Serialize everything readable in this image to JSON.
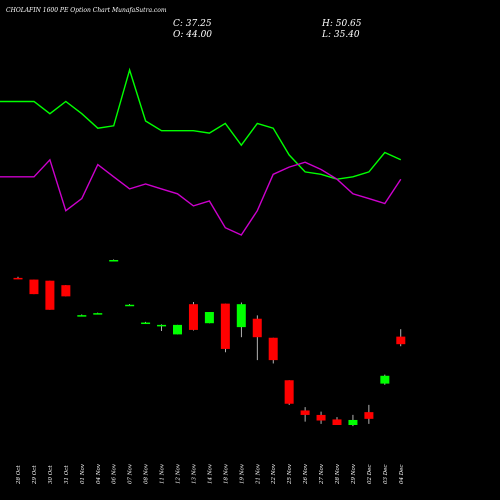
{
  "header": {
    "title": "CHOLAFIN 1600 PE Option Chart MunafaSutra.com",
    "c": "C: 37.25",
    "h": "H: 50.65",
    "o": "O: 44.00",
    "l": "L: 35.40"
  },
  "colors": {
    "background": "#000000",
    "up": "#00ff00",
    "down": "#ff0000",
    "line_upper": "#00ff00",
    "line_lower": "#cc00cc",
    "text": "#ffffff"
  },
  "chart_data": {
    "type": "candlestick",
    "grid": false,
    "title": "CHOLAFIN 1600 PE Option Chart MunafaSutra.com",
    "x": [
      "28 Oct",
      "29 Oct",
      "30 Oct",
      "31 Oct",
      "01 Nov",
      "04 Nov",
      "06 Nov",
      "07 Nov",
      "08 Nov",
      "11 Nov",
      "12 Nov",
      "13 Nov",
      "14 Nov",
      "18 Nov",
      "19 Nov",
      "21 Nov",
      "22 Nov",
      "25 Nov",
      "26 Nov",
      "27 Nov",
      "28 Nov",
      "29 Nov",
      "02 Dec",
      "03 Dec",
      "04 Dec"
    ],
    "candles": [
      {
        "o": 96.5,
        "h": 97.5,
        "l": 95.5,
        "c": 96.0
      },
      {
        "o": 95.0,
        "h": 95.0,
        "l": 82.0,
        "c": 82.0
      },
      {
        "o": 94.0,
        "h": 94.0,
        "l": 68.0,
        "c": 68.0
      },
      {
        "o": 90.0,
        "h": 90.0,
        "l": 80.0,
        "c": 80.0
      },
      {
        "o": 63.2,
        "h": 63.8,
        "l": 62.8,
        "c": 63.2
      },
      {
        "o": 64.8,
        "h": 65.4,
        "l": 64.4,
        "c": 65.0
      },
      {
        "o": 112.4,
        "h": 113.0,
        "l": 112.0,
        "c": 112.5
      },
      {
        "o": 72.4,
        "h": 73.0,
        "l": 72.0,
        "c": 72.5
      },
      {
        "o": 56.6,
        "h": 57.2,
        "l": 56.2,
        "c": 56.6
      },
      {
        "o": 53.5,
        "h": 55.0,
        "l": 49.0,
        "c": 54.5
      },
      {
        "o": 46.0,
        "h": 54.5,
        "l": 46.0,
        "c": 54.5
      },
      {
        "o": 73.0,
        "h": 75.0,
        "l": 49.5,
        "c": 50.0
      },
      {
        "o": 56.0,
        "h": 66.0,
        "l": 56.0,
        "c": 66.0
      },
      {
        "o": 73.5,
        "h": 73.5,
        "l": 30.0,
        "c": 33.0
      },
      {
        "o": 52.5,
        "h": 74.5,
        "l": 43.5,
        "c": 73.0
      },
      {
        "o": 60.0,
        "h": 63.0,
        "l": 23.0,
        "c": 43.5
      },
      {
        "o": 43.0,
        "h": 43.0,
        "l": 20.0,
        "c": 23.0
      },
      {
        "o": 5.0,
        "h": 5.0,
        "l": -17.0,
        "c": -16.0
      },
      {
        "o": -22.0,
        "h": -19.0,
        "l": -32.0,
        "c": -26.0
      },
      {
        "o": -26.0,
        "h": -23.0,
        "l": -34.0,
        "c": -31.0
      },
      {
        "o": -30.0,
        "h": -28.0,
        "l": -35.0,
        "c": -35.0
      },
      {
        "o": -35.0,
        "h": -26.0,
        "l": -36.0,
        "c": -30.5
      },
      {
        "o": -23.5,
        "h": -17.0,
        "l": -34.0,
        "c": -29.5
      },
      {
        "o": 2.0,
        "h": 10.0,
        "l": 1.0,
        "c": 9.0
      },
      {
        "o": 44.0,
        "h": 50.65,
        "l": 35.4,
        "c": 37.25
      }
    ],
    "lines": [
      {
        "color": "#00ff00",
        "values": [
          100,
          100,
          95,
          100,
          95,
          89,
          90,
          113,
          92,
          88,
          88,
          88,
          87,
          91,
          82,
          91,
          89,
          78,
          71,
          70,
          68,
          69,
          71,
          79,
          76
        ]
      },
      {
        "color": "#cc00cc",
        "values": [
          69,
          69,
          76,
          55,
          60,
          74,
          69,
          64,
          66,
          64,
          62,
          57,
          59,
          48,
          45,
          55,
          70,
          73,
          75,
          72,
          68,
          62,
          60,
          58,
          68
        ]
      }
    ]
  }
}
